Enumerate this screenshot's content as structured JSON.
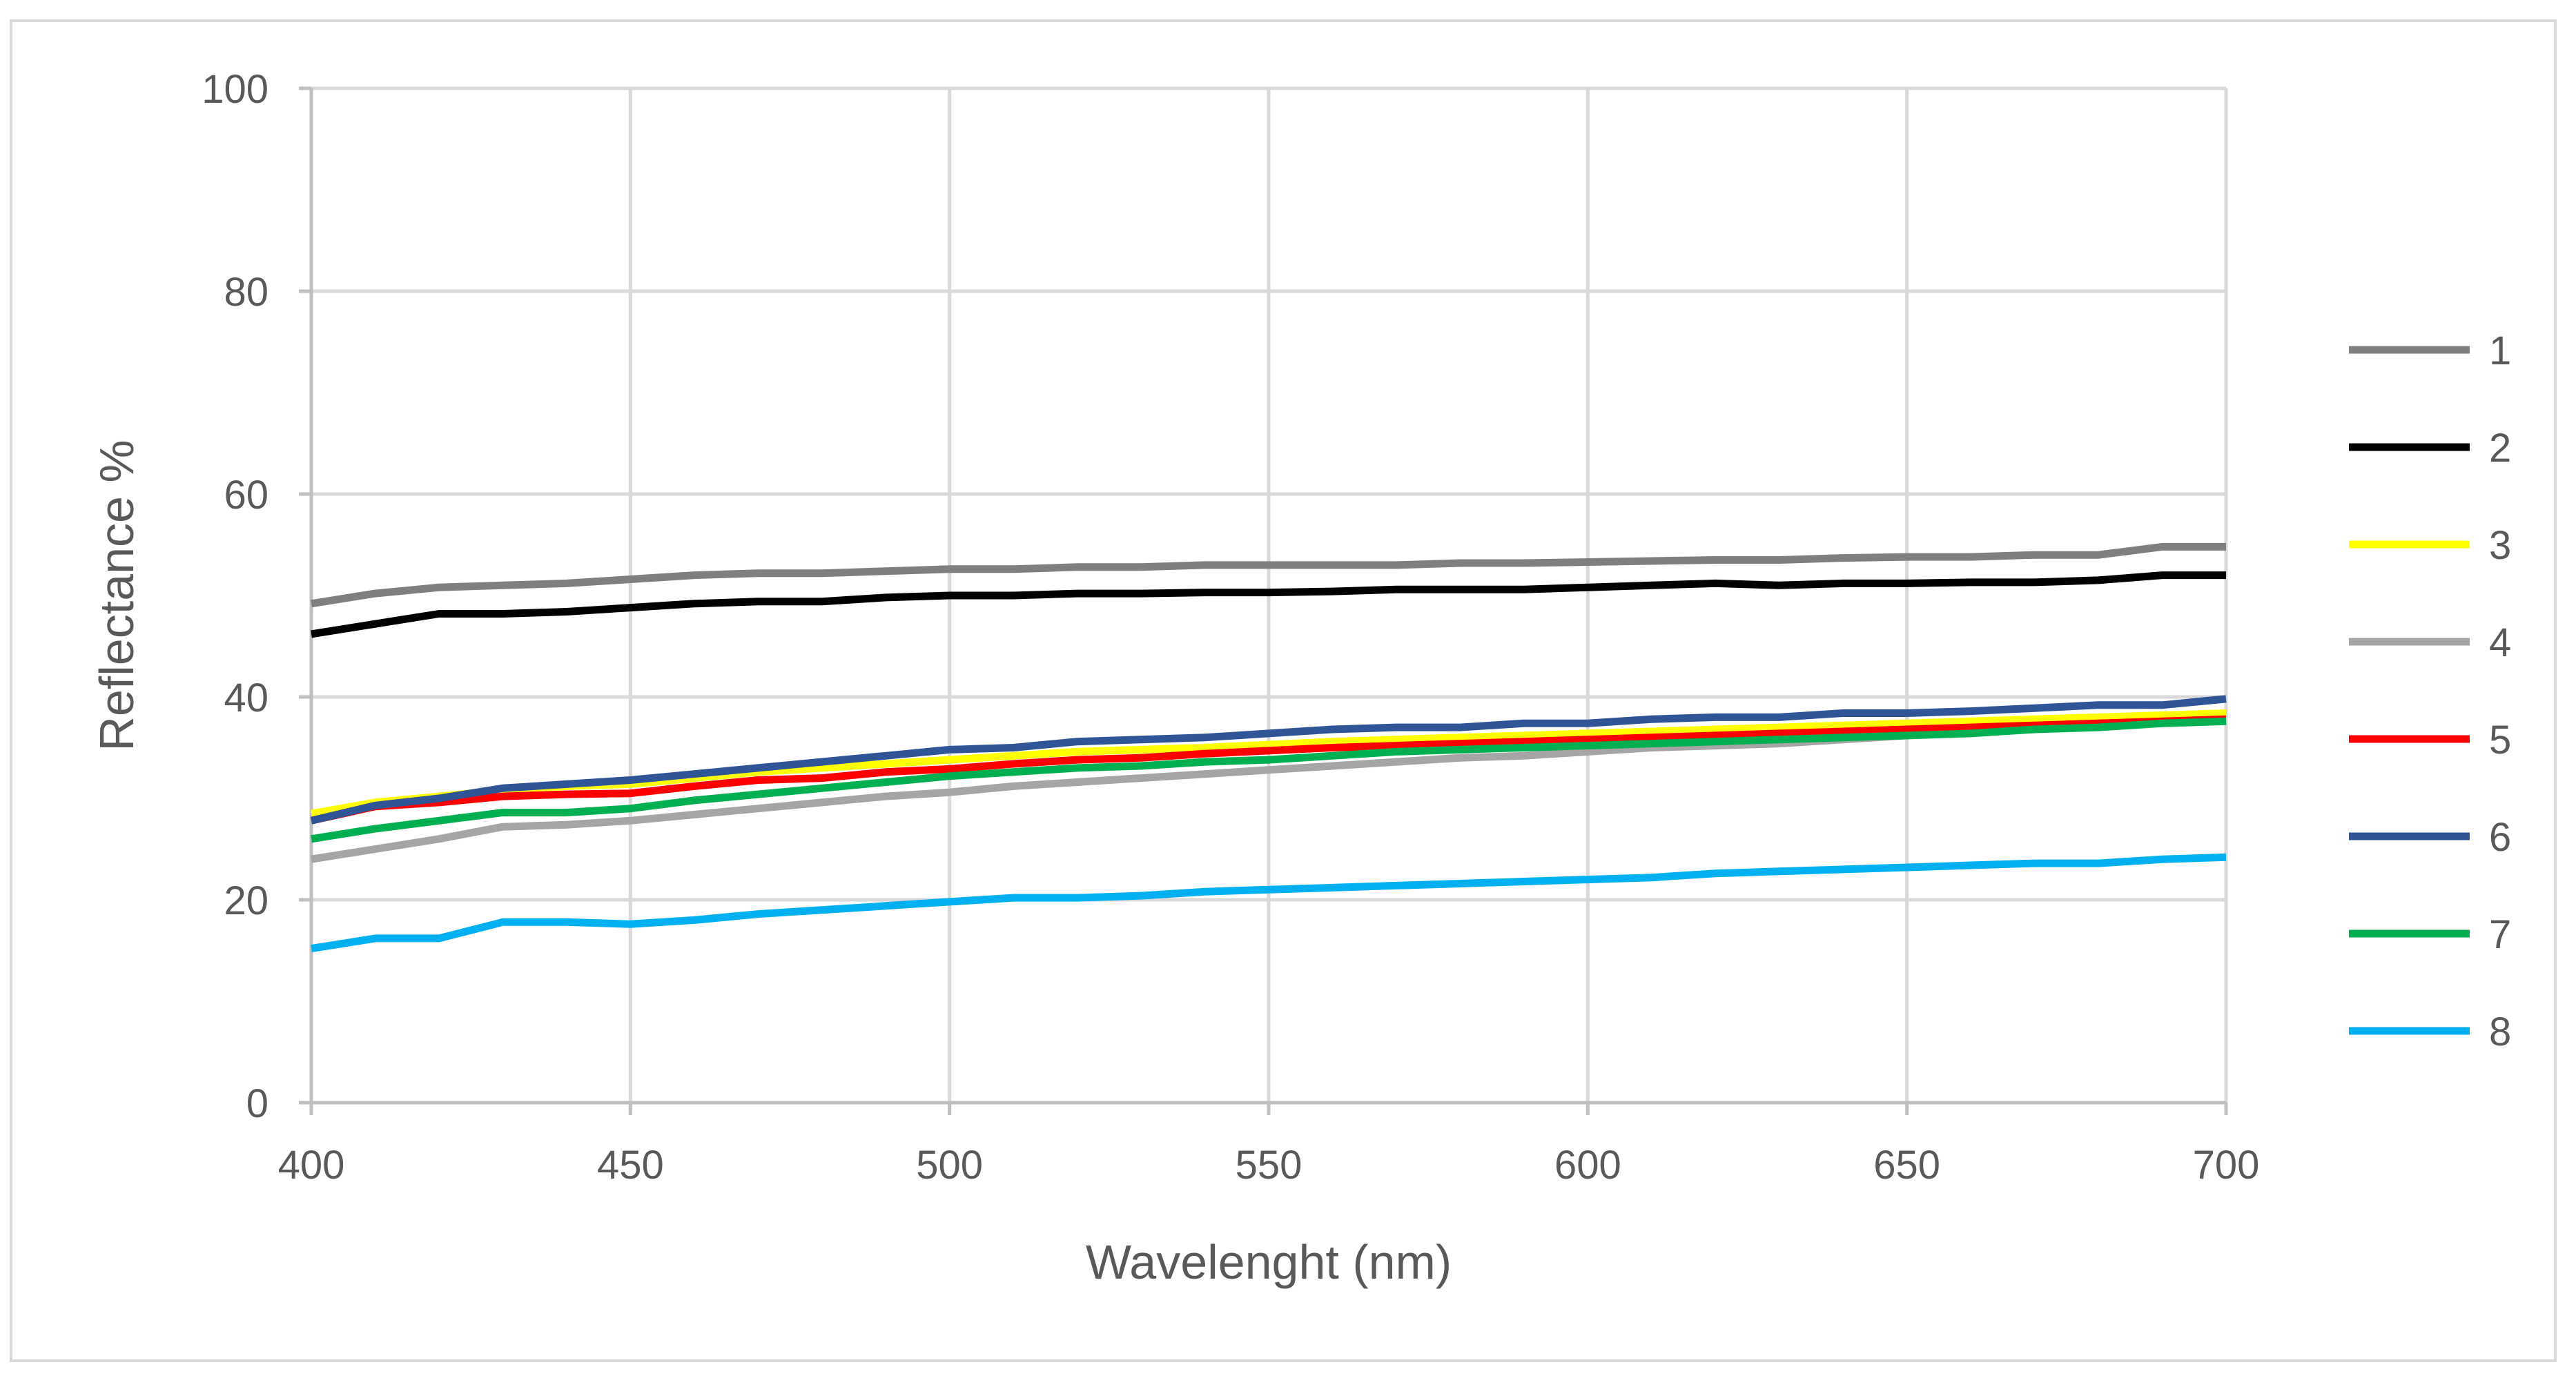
{
  "chart_data": {
    "type": "line",
    "title": "",
    "xlabel": "Wavelenght (nm)",
    "ylabel": "Reflectance %",
    "xlim": [
      400,
      700
    ],
    "ylim": [
      0,
      100
    ],
    "x_ticks": [
      400,
      450,
      500,
      550,
      600,
      650,
      700
    ],
    "y_ticks": [
      0,
      20,
      40,
      60,
      80,
      100
    ],
    "grid": true,
    "legend_position": "right",
    "x": [
      400,
      410,
      420,
      430,
      440,
      450,
      460,
      470,
      480,
      490,
      500,
      510,
      520,
      530,
      540,
      550,
      560,
      570,
      580,
      590,
      600,
      610,
      620,
      630,
      640,
      650,
      660,
      670,
      680,
      690,
      700
    ],
    "series": [
      {
        "name": "1",
        "color": "#7f7f7f",
        "values": [
          49.2,
          50.2,
          50.8,
          51.0,
          51.2,
          51.6,
          52.0,
          52.2,
          52.2,
          52.4,
          52.6,
          52.6,
          52.8,
          52.8,
          53.0,
          53.0,
          53.0,
          53.0,
          53.2,
          53.2,
          53.3,
          53.4,
          53.5,
          53.5,
          53.7,
          53.8,
          53.8,
          54.0,
          54.0,
          54.8,
          54.8
        ]
      },
      {
        "name": "2",
        "color": "#000000",
        "values": [
          46.2,
          47.2,
          48.2,
          48.2,
          48.4,
          48.8,
          49.2,
          49.4,
          49.4,
          49.8,
          50.0,
          50.0,
          50.2,
          50.2,
          50.3,
          50.3,
          50.4,
          50.6,
          50.6,
          50.6,
          50.8,
          51.0,
          51.2,
          51.0,
          51.2,
          51.2,
          51.3,
          51.3,
          51.5,
          52.0,
          52.0
        ]
      },
      {
        "name": "3",
        "color": "#ffff00",
        "values": [
          28.5,
          29.6,
          30.2,
          30.8,
          31.2,
          31.4,
          32.0,
          32.6,
          33.0,
          33.4,
          33.8,
          34.2,
          34.6,
          34.8,
          35.0,
          35.3,
          35.6,
          35.8,
          36.0,
          36.2,
          36.4,
          36.6,
          36.8,
          37.0,
          37.2,
          37.4,
          37.6,
          37.8,
          38.0,
          38.2,
          38.4
        ]
      },
      {
        "name": "4",
        "color": "#a5a5a5",
        "values": [
          24.0,
          25.0,
          26.0,
          27.2,
          27.4,
          27.8,
          28.4,
          29.0,
          29.6,
          30.2,
          30.6,
          31.2,
          31.6,
          32.0,
          32.4,
          32.8,
          33.2,
          33.6,
          34.0,
          34.2,
          34.6,
          35.0,
          35.2,
          35.4,
          35.8,
          36.2,
          36.6,
          37.0,
          37.2,
          37.4,
          37.6
        ]
      },
      {
        "name": "5",
        "color": "#ff0000",
        "values": [
          27.8,
          29.2,
          29.6,
          30.2,
          30.4,
          30.5,
          31.2,
          31.8,
          32.0,
          32.6,
          32.9,
          33.4,
          33.8,
          34.0,
          34.4,
          34.7,
          35.0,
          35.2,
          35.4,
          35.6,
          35.8,
          36.0,
          36.2,
          36.4,
          36.6,
          36.8,
          37.0,
          37.2,
          37.4,
          37.6,
          37.8
        ]
      },
      {
        "name": "6",
        "color": "#2f5597",
        "values": [
          27.8,
          29.3,
          30.0,
          31.0,
          31.4,
          31.8,
          32.4,
          33.0,
          33.6,
          34.2,
          34.8,
          35.0,
          35.6,
          35.8,
          36.0,
          36.4,
          36.8,
          37.0,
          37.0,
          37.4,
          37.4,
          37.8,
          38.0,
          38.0,
          38.4,
          38.4,
          38.6,
          38.9,
          39.2,
          39.2,
          39.8
        ]
      },
      {
        "name": "7",
        "color": "#00b050",
        "values": [
          26.0,
          27.0,
          27.8,
          28.6,
          28.6,
          29.0,
          29.8,
          30.4,
          31.0,
          31.6,
          32.2,
          32.6,
          33.0,
          33.2,
          33.6,
          33.8,
          34.2,
          34.6,
          34.8,
          35.0,
          35.2,
          35.4,
          35.6,
          35.8,
          36.0,
          36.2,
          36.4,
          36.8,
          37.0,
          37.4,
          37.6
        ]
      },
      {
        "name": "8",
        "color": "#00b0f0",
        "values": [
          15.2,
          16.2,
          16.2,
          17.8,
          17.8,
          17.6,
          18.0,
          18.6,
          19.0,
          19.4,
          19.8,
          20.2,
          20.2,
          20.4,
          20.8,
          21.0,
          21.2,
          21.4,
          21.6,
          21.8,
          22.0,
          22.2,
          22.6,
          22.8,
          23.0,
          23.2,
          23.4,
          23.6,
          23.6,
          24.0,
          24.2
        ]
      }
    ]
  }
}
